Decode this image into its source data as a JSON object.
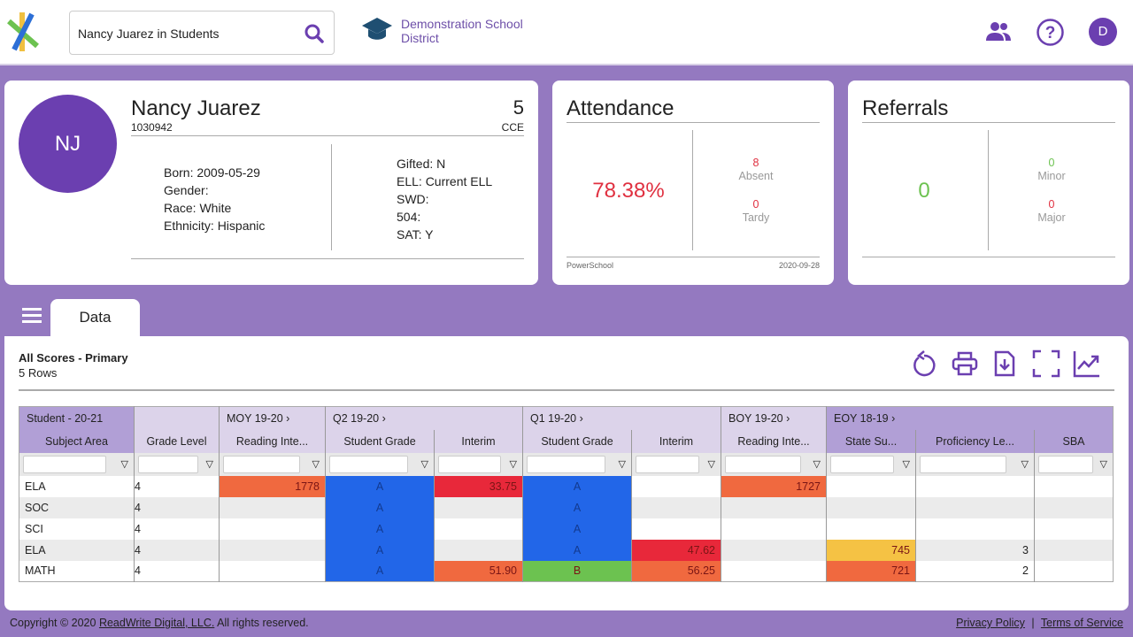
{
  "header": {
    "search_value": "Nancy Juarez in Students",
    "district": "Demonstration School District",
    "user_initial": "D"
  },
  "student": {
    "initials": "NJ",
    "name": "Nancy Juarez",
    "id": "1030942",
    "grade": "5",
    "school": "CCE",
    "left": [
      "Born: 2009-05-29",
      "Gender:",
      "Race: White",
      "Ethnicity: Hispanic"
    ],
    "right": [
      "Gifted: N",
      "ELL: Current ELL",
      "SWD:",
      "504:",
      "SAT: Y"
    ]
  },
  "attendance": {
    "title": "Attendance",
    "rate": "78.38%",
    "absent_value": "8",
    "absent_label": "Absent",
    "tardy_value": "0",
    "tardy_label": "Tardy",
    "source": "PowerSchool",
    "date": "2020-09-28"
  },
  "referrals": {
    "title": "Referrals",
    "total": "0",
    "minor_value": "0",
    "minor_label": "Minor",
    "major_value": "0",
    "major_label": "Major"
  },
  "tabs": {
    "data_label": "Data"
  },
  "scores": {
    "title": "All Scores - Primary",
    "rows_label": "5 Rows",
    "groups": [
      {
        "label": "Student - 20-21",
        "span": 1,
        "dark": true
      },
      {
        "label": "",
        "span": 1
      },
      {
        "label": "MOY 19-20 ›",
        "span": 1
      },
      {
        "label": "Q2 19-20 ›",
        "span": 2
      },
      {
        "label": "Q1 19-20 ›",
        "span": 2
      },
      {
        "label": "BOY 19-20 ›",
        "span": 1
      },
      {
        "label": "EOY 18-19 ›",
        "span": 3,
        "dark": true
      }
    ],
    "columns": [
      "Subject Area",
      "Grade Level",
      "Reading Inte...",
      "Student Grade",
      "Interim",
      "Student Grade",
      "Interim",
      "Reading Inte...",
      "State Su...",
      "Proficiency Le...",
      "SBA"
    ],
    "rows": [
      [
        "ELA",
        "4",
        "1778",
        "A",
        "33.75",
        "A",
        "",
        "1727",
        "",
        "",
        ""
      ],
      [
        "SOC",
        "4",
        "",
        "A",
        "",
        "A",
        "",
        "",
        "",
        "",
        ""
      ],
      [
        "SCI",
        "4",
        "",
        "A",
        "",
        "A",
        "",
        "",
        "",
        "",
        ""
      ],
      [
        "ELA",
        "4",
        "",
        "A",
        "",
        "A",
        "47.62",
        "",
        "745",
        "3",
        ""
      ],
      [
        "MATH",
        "4",
        "",
        "A",
        "51.90",
        "B",
        "56.25",
        "",
        "721",
        "2",
        ""
      ]
    ],
    "colors": [
      [
        null,
        null,
        "#f0693f",
        "#2266e8",
        "#e8283a",
        "#2266e8",
        null,
        "#f0693f",
        null,
        null,
        null
      ],
      [
        null,
        null,
        null,
        "#2266e8",
        null,
        "#2266e8",
        null,
        null,
        null,
        null,
        null
      ],
      [
        null,
        null,
        null,
        "#2266e8",
        null,
        "#2266e8",
        null,
        null,
        null,
        null,
        null
      ],
      [
        null,
        null,
        null,
        "#2266e8",
        null,
        "#2266e8",
        "#e8283a",
        null,
        "#f5c244",
        null,
        null
      ],
      [
        null,
        null,
        null,
        "#2266e8",
        "#f0693f",
        "#6cc250",
        "#f0693f",
        null,
        "#f0693f",
        null,
        null
      ]
    ]
  },
  "footer": {
    "copyright_prefix": "Copyright © 2020 ",
    "company": "ReadWrite Digital, LLC.",
    "copyright_suffix": " All rights reserved.",
    "privacy": "Privacy Policy",
    "separator": "|",
    "terms": "Terms of Service"
  }
}
